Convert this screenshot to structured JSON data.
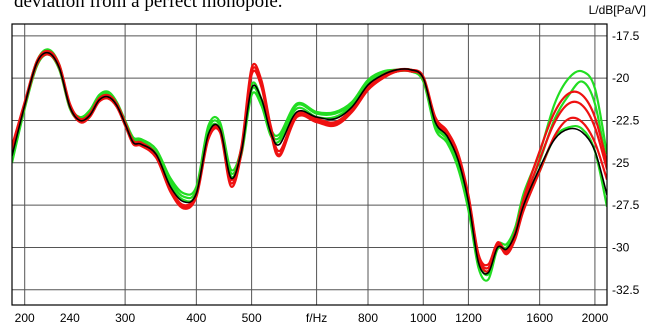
{
  "caption": "deviation from a perfect monopole.",
  "chart_data": {
    "type": "line",
    "xlabel": "f/Hz",
    "ylabel": "L/dB[Pa/V]",
    "xlim": [
      190,
      2100
    ],
    "ylim": [
      -33.4,
      -16.8
    ],
    "x_scale": "log",
    "grid": true,
    "x_ticks": [
      {
        "value": 200,
        "label": "200"
      },
      {
        "value": 240,
        "label": "240"
      },
      {
        "value": 300,
        "label": "300"
      },
      {
        "value": 400,
        "label": "400"
      },
      {
        "value": 500,
        "label": "500"
      },
      {
        "value": 650,
        "label": "f/Hz"
      },
      {
        "value": 800,
        "label": "800"
      },
      {
        "value": 1000,
        "label": "1000"
      },
      {
        "value": 1200,
        "label": "1200"
      },
      {
        "value": 1600,
        "label": "1600"
      },
      {
        "value": 2000,
        "label": "2000"
      }
    ],
    "x_grid": [
      200,
      300,
      400,
      500,
      650,
      800,
      1000,
      1200,
      1600,
      2000
    ],
    "y_ticks": [
      -17.5,
      -20,
      -22.5,
      -25,
      -27.5,
      -30,
      -32.5
    ],
    "y_tick_labels": [
      "-17.5",
      "-20",
      "-22.5",
      "-25",
      "-27.5",
      "-30",
      "-32.5"
    ],
    "colors": {
      "green": "#22dd22",
      "red": "#ee1111",
      "black": "#000000",
      "grid": "#555555"
    },
    "x": [
      190,
      200,
      210,
      220,
      230,
      240,
      250,
      260,
      270,
      280,
      290,
      300,
      310,
      320,
      340,
      360,
      380,
      400,
      420,
      440,
      460,
      480,
      500,
      520,
      540,
      560,
      600,
      650,
      700,
      750,
      800,
      850,
      900,
      950,
      1000,
      1050,
      1100,
      1150,
      1200,
      1250,
      1300,
      1350,
      1400,
      1450,
      1500,
      1600,
      1700,
      1800,
      1900,
      2000,
      2100
    ],
    "series": [
      {
        "color": "green",
        "values": [
          -25.0,
          -21.8,
          -19.3,
          -18.6,
          -19.5,
          -21.8,
          -22.5,
          -22.1,
          -21.2,
          -21.0,
          -21.6,
          -22.8,
          -23.8,
          -23.8,
          -24.6,
          -26.3,
          -27.2,
          -26.8,
          -23.2,
          -23.0,
          -25.8,
          -24.5,
          -21.0,
          -21.6,
          -23.4,
          -23.7,
          -21.8,
          -22.3,
          -22.3,
          -21.6,
          -20.3,
          -19.8,
          -19.6,
          -19.6,
          -20.2,
          -23.0,
          -23.8,
          -25.3,
          -27.8,
          -31.2,
          -31.9,
          -30.1,
          -30.2,
          -29.2,
          -27.6,
          -25.5,
          -23.5,
          -22.9,
          -23.0,
          -24.3,
          -27.6
        ]
      },
      {
        "color": "green",
        "values": [
          -24.8,
          -21.6,
          -19.1,
          -18.4,
          -19.3,
          -21.7,
          -22.4,
          -22.0,
          -21.1,
          -20.9,
          -21.5,
          -22.6,
          -23.6,
          -23.7,
          -24.4,
          -26.1,
          -27.0,
          -26.6,
          -23.0,
          -22.8,
          -25.6,
          -24.3,
          -20.7,
          -21.4,
          -23.2,
          -23.5,
          -21.6,
          -22.1,
          -22.1,
          -21.5,
          -20.2,
          -19.7,
          -19.5,
          -19.6,
          -20.1,
          -22.8,
          -23.6,
          -25.0,
          -27.5,
          -30.8,
          -31.6,
          -30.0,
          -30.0,
          -29.0,
          -27.2,
          -24.9,
          -22.4,
          -21.0,
          -20.2,
          -21.5,
          -25.2
        ]
      },
      {
        "color": "green",
        "values": [
          -24.6,
          -21.5,
          -19.0,
          -18.3,
          -19.2,
          -21.6,
          -22.3,
          -21.9,
          -21.0,
          -20.8,
          -21.4,
          -22.5,
          -23.5,
          -23.6,
          -24.2,
          -25.9,
          -26.8,
          -26.4,
          -22.8,
          -22.6,
          -25.4,
          -24.1,
          -20.4,
          -21.2,
          -23.0,
          -23.3,
          -21.5,
          -22.0,
          -22.0,
          -21.4,
          -20.1,
          -19.6,
          -19.5,
          -19.5,
          -20.0,
          -22.7,
          -23.5,
          -24.8,
          -27.3,
          -30.6,
          -31.4,
          -29.8,
          -29.8,
          -28.8,
          -26.8,
          -24.4,
          -21.5,
          -20.0,
          -19.6,
          -20.6,
          -24.5
        ]
      },
      {
        "color": "red",
        "values": [
          -24.4,
          -21.6,
          -19.2,
          -18.6,
          -19.4,
          -21.7,
          -22.6,
          -22.3,
          -21.4,
          -21.2,
          -21.7,
          -22.8,
          -23.9,
          -24.0,
          -24.7,
          -26.7,
          -27.7,
          -27.0,
          -23.6,
          -23.2,
          -26.4,
          -24.4,
          -19.8,
          -20.5,
          -23.2,
          -24.6,
          -22.3,
          -22.6,
          -22.8,
          -22.0,
          -20.7,
          -20.0,
          -19.6,
          -19.6,
          -20.0,
          -22.5,
          -23.3,
          -24.6,
          -27.1,
          -30.6,
          -31.4,
          -29.9,
          -30.4,
          -29.5,
          -27.8,
          -25.5,
          -23.4,
          -22.4,
          -22.6,
          -23.8,
          -26.0
        ]
      },
      {
        "color": "red",
        "values": [
          -24.2,
          -21.5,
          -19.1,
          -18.5,
          -19.3,
          -21.6,
          -22.5,
          -22.2,
          -21.3,
          -21.1,
          -21.6,
          -22.7,
          -23.8,
          -23.9,
          -24.6,
          -26.6,
          -27.6,
          -26.9,
          -23.5,
          -23.1,
          -26.2,
          -24.2,
          -19.6,
          -20.3,
          -23.0,
          -24.5,
          -22.2,
          -22.5,
          -22.7,
          -21.9,
          -20.6,
          -19.9,
          -19.6,
          -19.5,
          -20.0,
          -22.4,
          -23.2,
          -24.5,
          -27.0,
          -30.5,
          -31.2,
          -29.8,
          -30.3,
          -29.3,
          -27.4,
          -24.8,
          -22.6,
          -21.5,
          -21.6,
          -22.9,
          -25.4
        ]
      },
      {
        "color": "red",
        "values": [
          -24.0,
          -21.4,
          -19.0,
          -18.4,
          -19.2,
          -21.5,
          -22.4,
          -22.1,
          -21.2,
          -21.0,
          -21.5,
          -22.6,
          -23.7,
          -23.8,
          -24.5,
          -26.5,
          -27.5,
          -26.8,
          -23.4,
          -23.0,
          -26.0,
          -24.0,
          -19.4,
          -20.1,
          -22.8,
          -24.3,
          -22.1,
          -22.4,
          -22.6,
          -21.8,
          -20.5,
          -19.8,
          -19.5,
          -19.5,
          -19.9,
          -22.3,
          -23.1,
          -24.4,
          -26.9,
          -30.4,
          -31.0,
          -29.7,
          -30.2,
          -29.1,
          -27.1,
          -24.3,
          -22.0,
          -20.9,
          -21.0,
          -22.3,
          -25.0
        ]
      },
      {
        "color": "black",
        "values": [
          -24.6,
          -21.6,
          -19.1,
          -18.5,
          -19.4,
          -21.7,
          -22.5,
          -22.2,
          -21.3,
          -21.1,
          -21.6,
          -22.7,
          -23.8,
          -23.9,
          -24.5,
          -26.4,
          -27.3,
          -26.8,
          -23.3,
          -23.0,
          -25.9,
          -24.3,
          -20.6,
          -21.2,
          -23.2,
          -23.9,
          -22.0,
          -22.3,
          -22.4,
          -21.7,
          -20.4,
          -19.8,
          -19.5,
          -19.5,
          -20.0,
          -22.6,
          -23.4,
          -24.8,
          -27.3,
          -30.9,
          -31.5,
          -30.0,
          -30.1,
          -29.2,
          -27.5,
          -25.3,
          -23.6,
          -23.0,
          -23.2,
          -24.3,
          -26.9
        ]
      }
    ]
  }
}
